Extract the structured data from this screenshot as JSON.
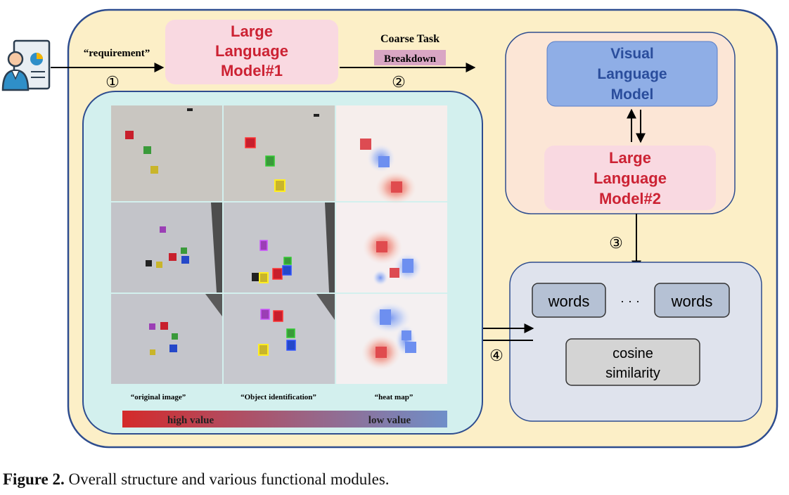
{
  "colors": {
    "outer_bg": "#fcefc7",
    "outer_border": "#2e4d8f",
    "llm_fill": "#f9d9e1",
    "llm_text": "#cc2233",
    "vlm_fill": "#8faee6",
    "vlm_text": "#2a4d9c",
    "right_panel": "#fce6d6",
    "left_panel": "#d3f0ee",
    "bottom_panel": "#dfe3ed",
    "words_fill": "#b5c1d4",
    "cosine_fill": "#d4d4d4",
    "breakdown_fill": "#d9a6c4",
    "grad_high": "#d42a2a",
    "grad_low": "#6f8fc9"
  },
  "user_icon": "user-report-icon",
  "input_label": "“requirement”",
  "step_1": "①",
  "step_2": "②",
  "step_3": "③",
  "step_4": "④",
  "llm1": {
    "line1": "Large",
    "line2": "Language",
    "line3": "Model#1"
  },
  "coarse_task": "Coarse Task",
  "breakdown": "Breakdown",
  "vlm": {
    "line1": "Visual",
    "line2": "Language",
    "line3": "Model"
  },
  "llm2": {
    "line1": "Large",
    "line2": "Language",
    "line3": "Model#2"
  },
  "words_left": "words",
  "ellipsis": "· · ·",
  "words_right": "words",
  "cosine": {
    "line1": "cosine",
    "line2": "similarity"
  },
  "col_labels": [
    "“original image”",
    "“Object identification”",
    "“heat map”"
  ],
  "gradient": {
    "high": "high value",
    "low": "low value"
  },
  "caption": {
    "bold": "Figure 2.",
    "text": " Overall structure and various functional modules."
  }
}
